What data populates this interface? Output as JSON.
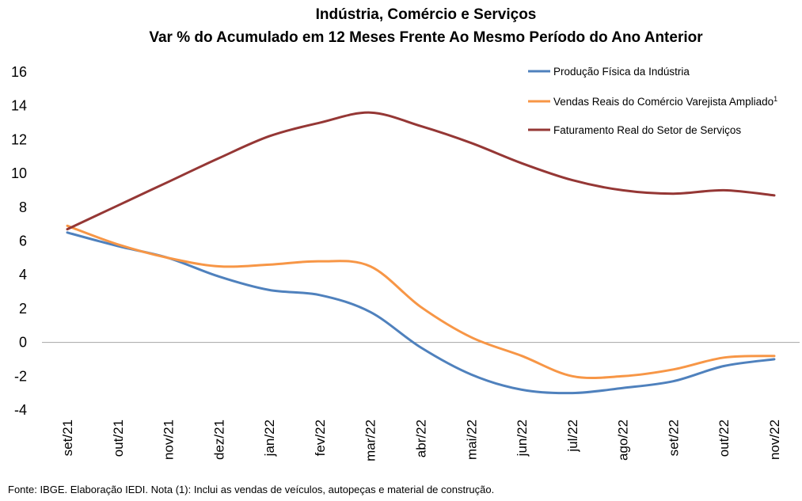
{
  "chart_data": {
    "type": "line",
    "title": "Indústria, Comércio e Serviços",
    "subtitle": "Var % do Acumulado em 12 Meses Frente Ao Mesmo Período do Ano Anterior",
    "categories": [
      "set/21",
      "out/21",
      "nov/21",
      "dez/21",
      "jan/22",
      "fev/22",
      "mar/22",
      "abr/22",
      "mai/22",
      "jun/22",
      "jul/22",
      "ago/22",
      "set/22",
      "out/22",
      "nov/22"
    ],
    "ylim": [
      -4,
      16
    ],
    "yticks": [
      -4,
      -2,
      0,
      2,
      4,
      6,
      8,
      10,
      12,
      14,
      16
    ],
    "legend_position": "top-right",
    "grid": false,
    "series": [
      {
        "name": "Produção Física da Indústria",
        "color": "#4f81bd",
        "values": [
          6.5,
          5.7,
          5.0,
          3.9,
          3.1,
          2.8,
          1.8,
          -0.3,
          -1.9,
          -2.8,
          -3.0,
          -2.7,
          -2.3,
          -1.4,
          -1.0
        ]
      },
      {
        "name": "Vendas Reais do Comércio Varejista Ampliado",
        "name_superscript": "1",
        "color": "#f79646",
        "values": [
          6.9,
          5.8,
          5.0,
          4.5,
          4.6,
          4.8,
          4.5,
          2.1,
          0.3,
          -0.8,
          -2.0,
          -2.0,
          -1.6,
          -0.9,
          -0.8
        ]
      },
      {
        "name": "Faturamento Real do Setor de Serviços",
        "color": "#953735",
        "values": [
          6.7,
          8.1,
          9.5,
          10.9,
          12.2,
          13.0,
          13.6,
          12.8,
          11.8,
          10.6,
          9.6,
          9.0,
          8.8,
          9.0,
          8.7
        ]
      }
    ]
  },
  "footer": {
    "source_note": "Fonte: IBGE. Elaboração IEDI. Nota (1): Inclui as vendas de veículos, autopeças e material de construção."
  }
}
